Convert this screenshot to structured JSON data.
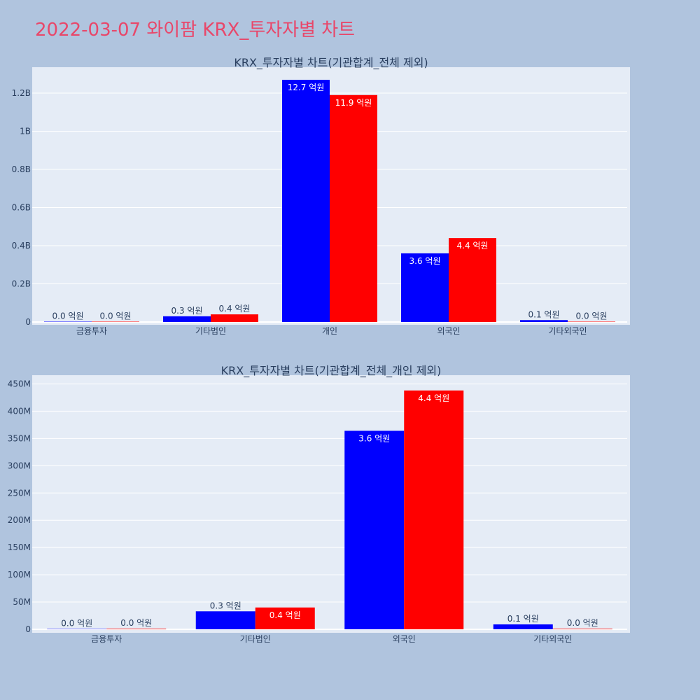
{
  "page_title": "2022-03-07 와이팜 KRX_투자자별 차트",
  "colors": {
    "background": "#b0c4de",
    "plot_bg": "#e5ecf6",
    "title": "#e8476a",
    "series_1": "#0000ff",
    "series_2": "#ff0000"
  },
  "chart_data": [
    {
      "type": "bar",
      "title": "KRX_투자자별 차트(기관합계_전체 제외)",
      "categories": [
        "금융투자",
        "기타법인",
        "개인",
        "외국인",
        "기타외국인"
      ],
      "series": [
        {
          "values": [
            0,
            30000000,
            1270000000,
            360000000,
            10000000
          ],
          "labels": [
            "0.0 억원",
            "0.3 억원",
            "12.7 억원",
            "3.6 억원",
            "0.1 억원"
          ]
        },
        {
          "values": [
            0,
            40000000,
            1190000000,
            440000000,
            0
          ],
          "labels": [
            "0.0 억원",
            "0.4 억원",
            "11.9 억원",
            "4.4 억원",
            "0.0 억원"
          ]
        }
      ],
      "ylim": [
        0,
        1336000000
      ],
      "yticks": [
        0,
        200000000,
        400000000,
        600000000,
        800000000,
        1000000000,
        1200000000
      ],
      "ytick_labels": [
        "0",
        "0.2B",
        "0.4B",
        "0.6B",
        "0.8B",
        "1B",
        "1.2B"
      ],
      "grid": true
    },
    {
      "type": "bar",
      "title": "KRX_투자자별 차트(기관합계_전체_개인 제외)",
      "categories": [
        "금융투자",
        "기타법인",
        "외국인",
        "기타외국인"
      ],
      "series": [
        {
          "values": [
            0,
            33000000,
            364000000,
            9000000
          ],
          "labels": [
            "0.0 억원",
            "0.3 억원",
            "3.6 억원",
            "0.1 억원"
          ]
        },
        {
          "values": [
            1000000,
            40000000,
            438000000,
            1000000
          ],
          "labels": [
            "0.0 억원",
            "0.4 억원",
            "4.4 억원",
            "0.0 억원"
          ]
        }
      ],
      "ylim": [
        0,
        466000000
      ],
      "yticks": [
        0,
        50000000,
        100000000,
        150000000,
        200000000,
        250000000,
        300000000,
        350000000,
        400000000,
        450000000
      ],
      "ytick_labels": [
        "0",
        "50M",
        "100M",
        "150M",
        "200M",
        "250M",
        "300M",
        "350M",
        "400M",
        "450M"
      ],
      "grid": true
    }
  ]
}
